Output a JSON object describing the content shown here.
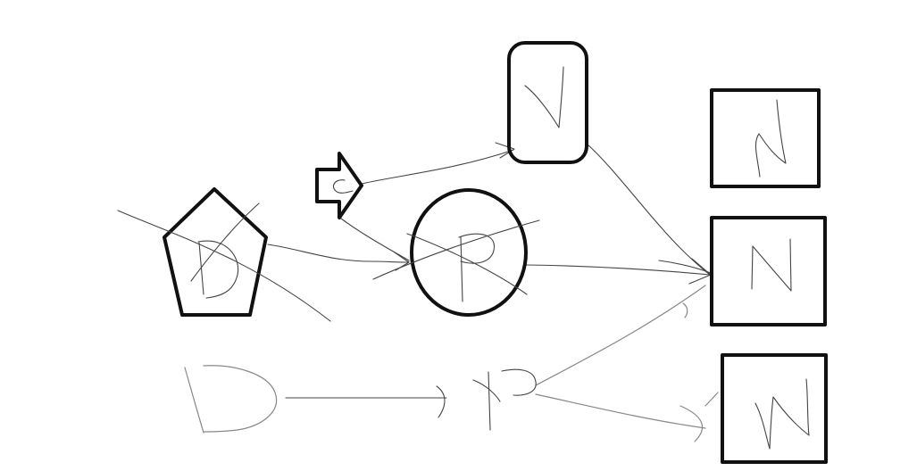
{
  "diagram": {
    "title": "",
    "background_color": "#ffffff",
    "ink_color": "#111111",
    "sketch_color": "#444444",
    "nodes": [
      {
        "id": "pentagon-d",
        "shape": "pentagon",
        "glyph": "D"
      },
      {
        "id": "arrow-c",
        "shape": "block-arrow",
        "glyph": "C"
      },
      {
        "id": "rounded-rect-v",
        "shape": "rounded-rectangle",
        "glyph": "V"
      },
      {
        "id": "circle-p",
        "shape": "circle",
        "glyph": "P"
      },
      {
        "id": "box-n-top",
        "shape": "rectangle",
        "glyph": "N"
      },
      {
        "id": "box-n-middle",
        "shape": "rectangle",
        "glyph": "N"
      },
      {
        "id": "box-n-bottom",
        "shape": "rectangle",
        "glyph": "N"
      },
      {
        "id": "sketch-d",
        "shape": "hand-drawn",
        "glyph": "D"
      },
      {
        "id": "sketch-p",
        "shape": "hand-drawn",
        "glyph": "P"
      }
    ],
    "edges": [
      {
        "from": "pentagon-d",
        "to": "circle-p"
      },
      {
        "from": "arrow-c",
        "to": "rounded-rect-v"
      },
      {
        "from": "arrow-c",
        "to": "circle-p"
      },
      {
        "from": "rounded-rect-v",
        "to": "box-n-middle"
      },
      {
        "from": "circle-p",
        "to": "box-n-middle"
      },
      {
        "from": "sketch-d",
        "to": "sketch-p"
      },
      {
        "from": "sketch-p",
        "to": "box-n-middle"
      },
      {
        "from": "sketch-p",
        "to": "box-n-bottom"
      }
    ]
  }
}
